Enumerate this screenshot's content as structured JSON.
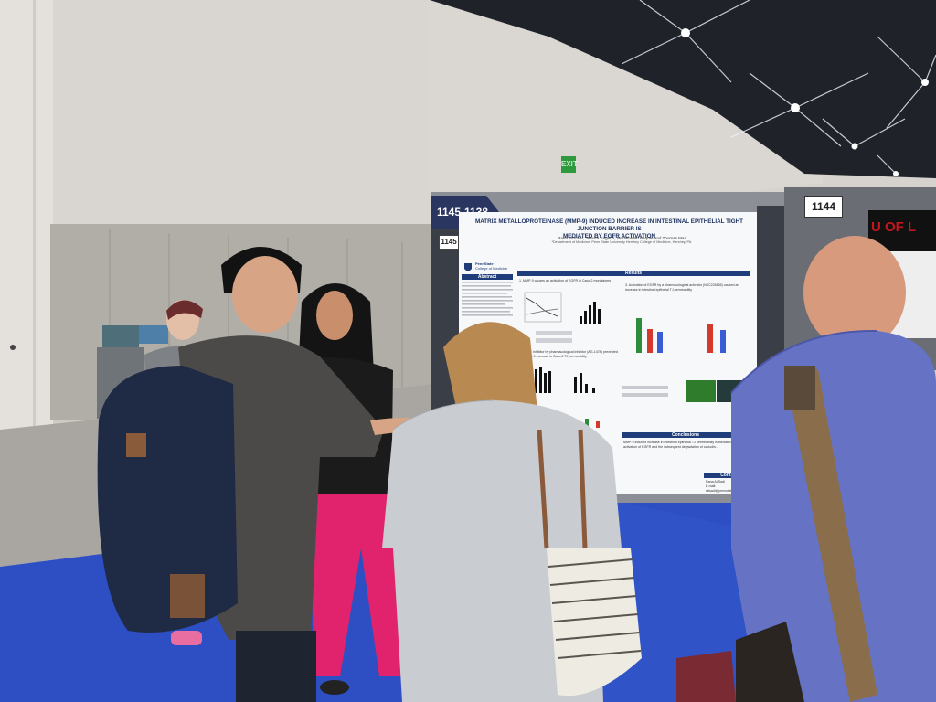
{
  "signs": {
    "aisle_range": "1145-1138",
    "booth_right": "1144",
    "booth_poster": "1145",
    "exit": "EXIT"
  },
  "poster": {
    "title_line1": "MATRIX METALLOPROTEINASE (MMP-9) INDUCED INCREASE IN INTESTINAL EPITHELIAL TIGHT JUNCTION BARRIER IS",
    "title_line2": "MEDIATED BY EGFR ACTIVATION",
    "authors": "Rana Al-Sadi¹, Jessica Engers¹, Mohammad Haque¹ and Thomas Ma¹",
    "affiliation": "¹Department of Medicine, Penn State University Hershey College of Medicine, Hershey, PA",
    "institution_line1": "PennState",
    "institution_line2": "College of Medicine",
    "sections": {
      "abstract": "Abstract",
      "results": "Results",
      "conclusions": "Conclusions",
      "contact": "Contact"
    },
    "result_captions": [
      "1. MMP-9 causes an activation of EGFR in Caco-2 monolayers",
      "3. Activation of EGFR by a pharmacological activator (NSC228155) caused an increase in intestinal epithelial TJ permeability",
      "2. EGFR inhibitor by pharmacological inhibitor (AG-1478) prevented the MMP-9 increase in Caco-2 TJ permeability"
    ],
    "conclusion_text": "MMP-9 induced increase in intestinal epithelial TJ permeability is mediated by the activation of EGFR and the subsequent degradation of occludin..",
    "contact_name": "Rana Al-Sadi",
    "contact_email": "E-mail: ralsadi@pennstatehealth.psu.edu"
  },
  "back_poster": {
    "logo_text": "U OF L"
  },
  "colors": {
    "poster_navy": "#1e3d7a",
    "carpet_blue": "#2d4fc3",
    "bar_green": "#2e8b3a",
    "bar_red": "#d33a2c",
    "bar_blue": "#3a5bd6"
  }
}
